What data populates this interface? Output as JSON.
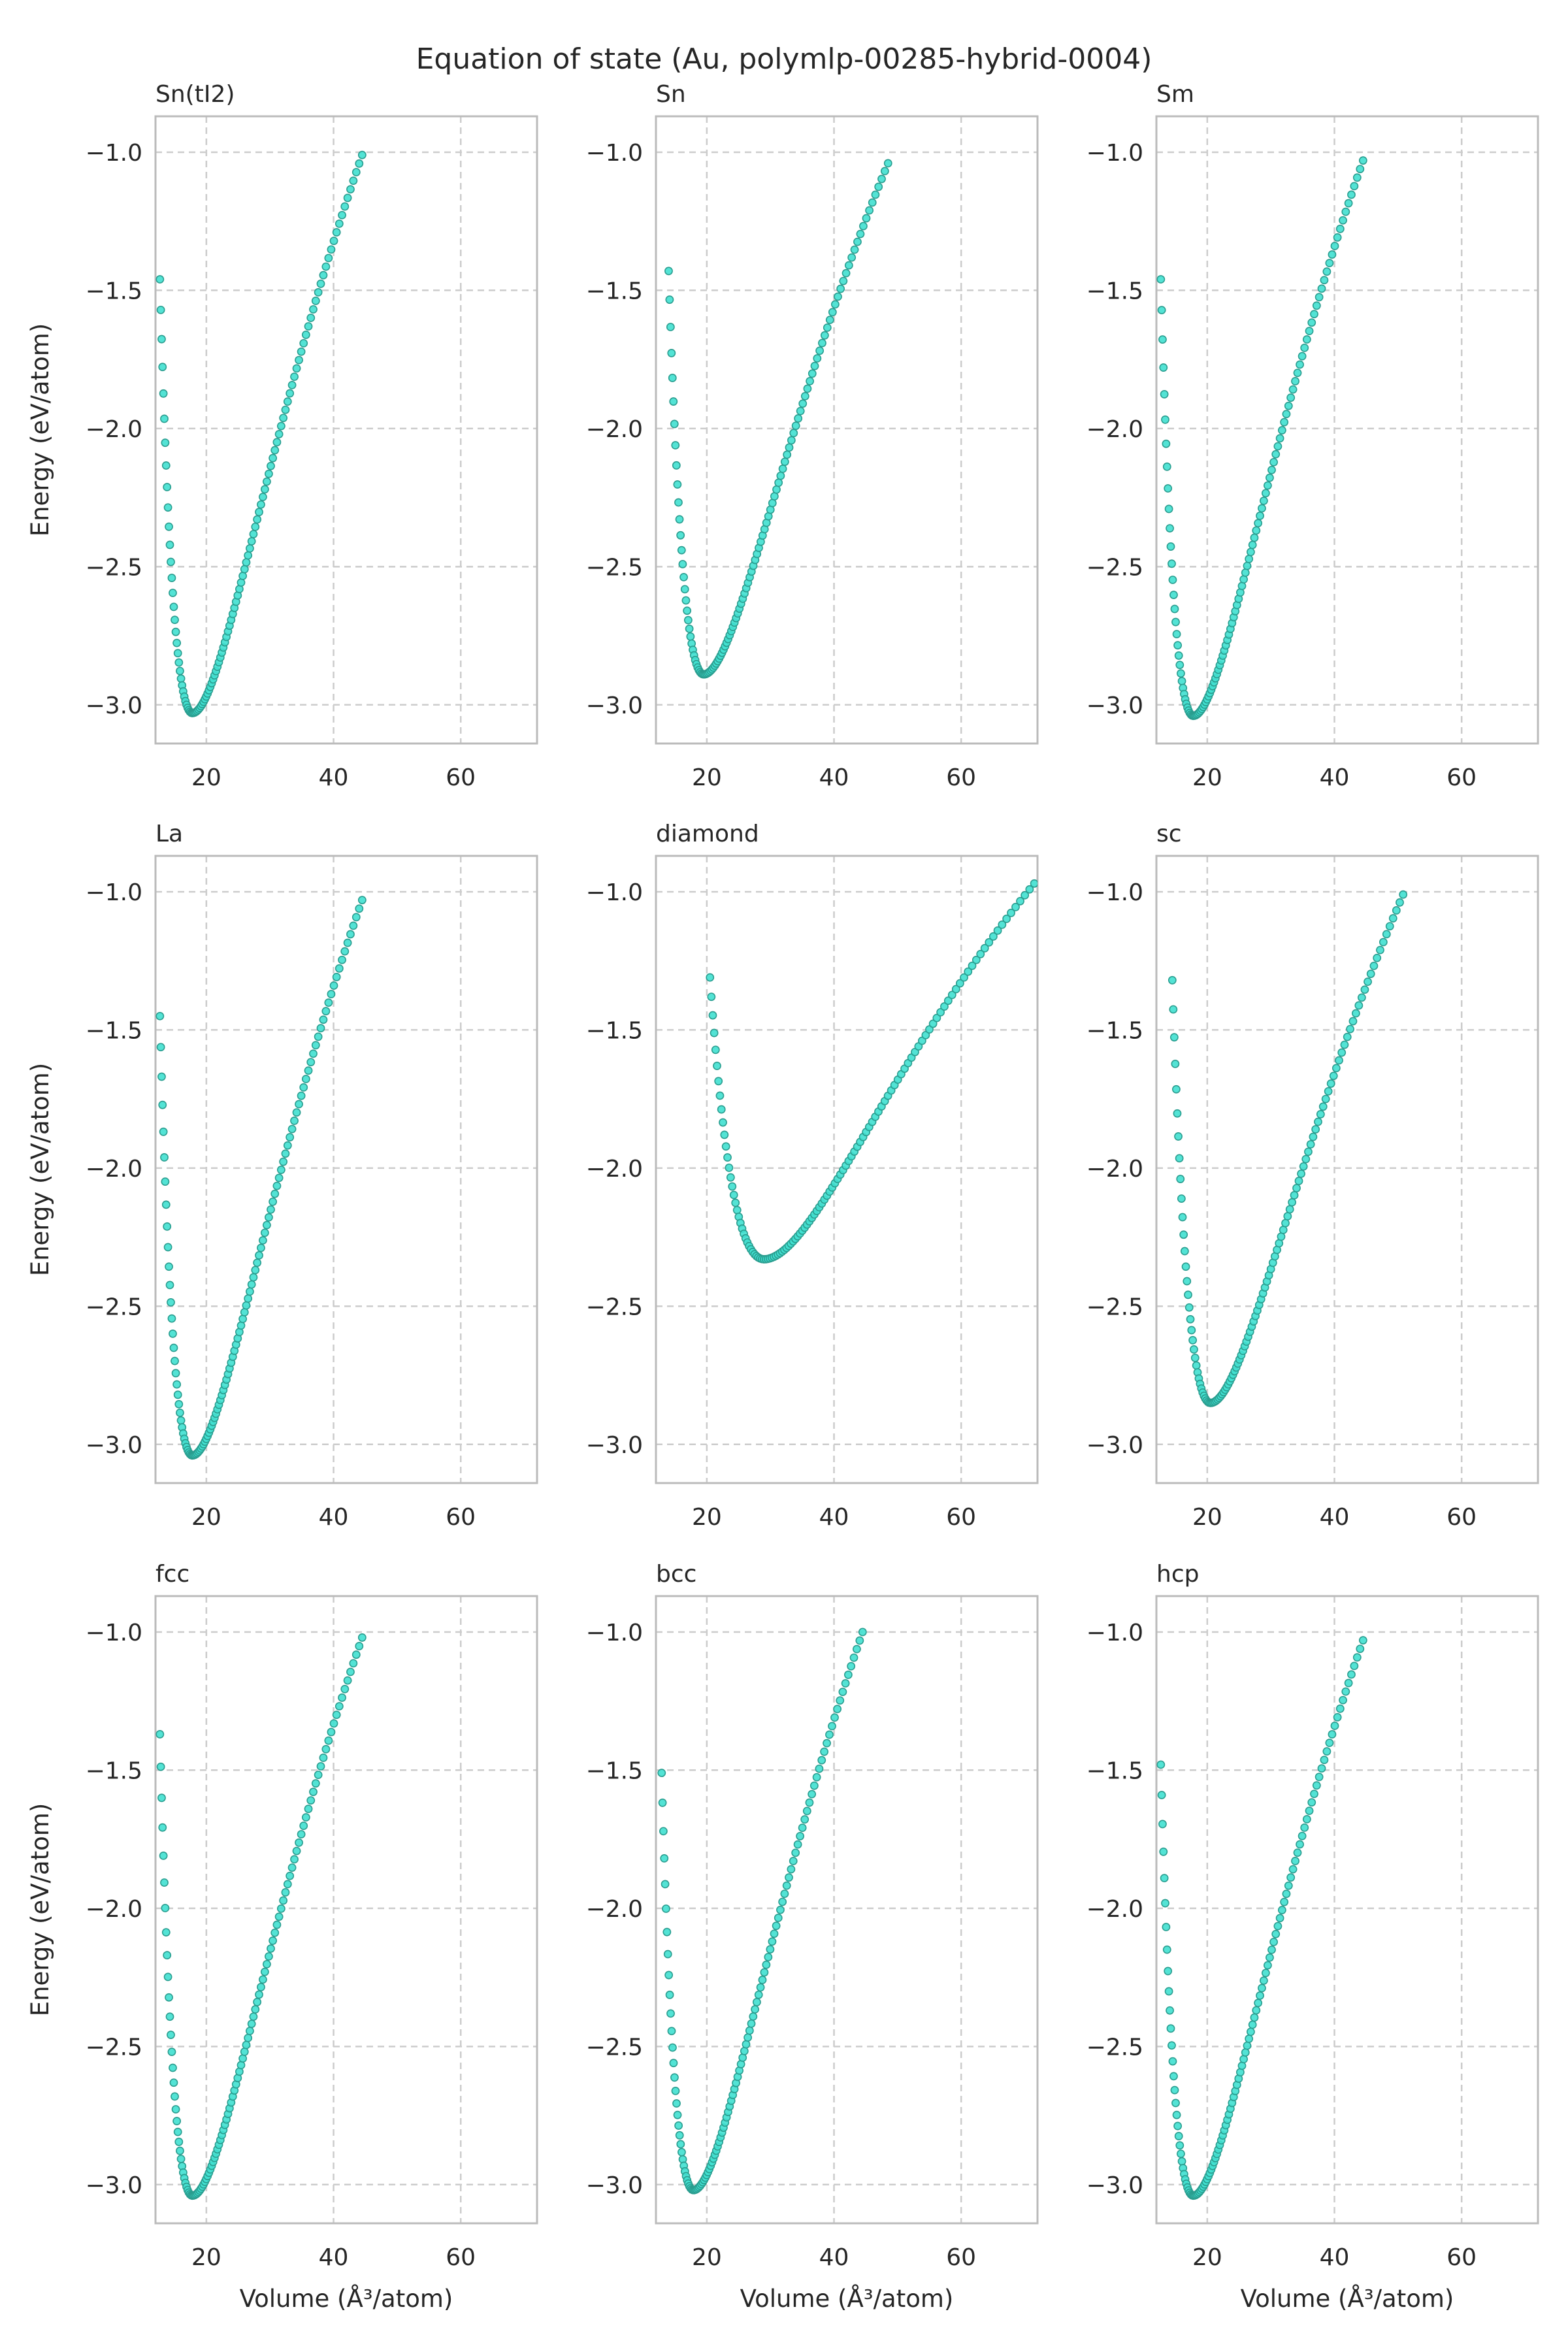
{
  "figure": {
    "title": "Equation of state (Au, polymlp-00285-hybrid-0004)",
    "point_color": "#40e0d0",
    "point_edge_color": "#2a9d8f",
    "grid_color": "#cccccc",
    "axis_color": "#bbbbbb",
    "text_color": "#262626"
  },
  "chart_data": [
    {
      "type": "scatter",
      "title": "Sn(tI2)",
      "xlabel": "",
      "ylabel": "Energy (eV/atom)",
      "xlim": [
        12,
        72
      ],
      "ylim": [
        -3.14,
        -0.87
      ],
      "xticks": [
        20,
        40,
        60
      ],
      "yticks": [
        -1.0,
        -1.5,
        -2.0,
        -2.5,
        -3.0
      ],
      "grid": true,
      "x0": 17.8,
      "emin": -3.03,
      "vmin": 12.7,
      "vmax": 44.5,
      "estart": -1.46,
      "eend": -1.01,
      "n": 120
    },
    {
      "type": "scatter",
      "title": "Sn",
      "xlabel": "",
      "ylabel": "",
      "xlim": [
        12,
        72
      ],
      "ylim": [
        -3.14,
        -0.87
      ],
      "xticks": [
        20,
        40,
        60
      ],
      "yticks": [
        -1.0,
        -1.5,
        -2.0,
        -2.5,
        -3.0
      ],
      "grid": true,
      "x0": 19.5,
      "emin": -2.89,
      "vmin": 14.0,
      "vmax": 48.5,
      "estart": -1.43,
      "eend": -1.04,
      "n": 120
    },
    {
      "type": "scatter",
      "title": "Sm",
      "xlabel": "",
      "ylabel": "",
      "xlim": [
        12,
        72
      ],
      "ylim": [
        -3.14,
        -0.87
      ],
      "xticks": [
        20,
        40,
        60
      ],
      "yticks": [
        -1.0,
        -1.5,
        -2.0,
        -2.5,
        -3.0
      ],
      "grid": true,
      "x0": 17.8,
      "emin": -3.04,
      "vmin": 12.7,
      "vmax": 44.5,
      "estart": -1.46,
      "eend": -1.03,
      "n": 120
    },
    {
      "type": "scatter",
      "title": "La",
      "xlabel": "",
      "ylabel": "Energy (eV/atom)",
      "xlim": [
        12,
        72
      ],
      "ylim": [
        -3.14,
        -0.87
      ],
      "xticks": [
        20,
        40,
        60
      ],
      "yticks": [
        -1.0,
        -1.5,
        -2.0,
        -2.5,
        -3.0
      ],
      "grid": true,
      "x0": 17.8,
      "emin": -3.04,
      "vmin": 12.7,
      "vmax": 44.5,
      "estart": -1.45,
      "eend": -1.03,
      "n": 120
    },
    {
      "type": "scatter",
      "title": "diamond",
      "xlabel": "",
      "ylabel": "",
      "xlim": [
        12,
        72
      ],
      "ylim": [
        -3.14,
        -0.87
      ],
      "xticks": [
        20,
        40,
        60
      ],
      "yticks": [
        -1.0,
        -1.5,
        -2.0,
        -2.5,
        -3.0
      ],
      "grid": true,
      "x0": 29.0,
      "emin": -2.33,
      "vmin": 20.5,
      "vmax": 71.5,
      "estart": -1.31,
      "eend": -0.97,
      "n": 120
    },
    {
      "type": "scatter",
      "title": "sc",
      "xlabel": "",
      "ylabel": "",
      "xlim": [
        12,
        72
      ],
      "ylim": [
        -3.14,
        -0.87
      ],
      "xticks": [
        20,
        40,
        60
      ],
      "yticks": [
        -1.0,
        -1.5,
        -2.0,
        -2.5,
        -3.0
      ],
      "grid": true,
      "x0": 20.5,
      "emin": -2.85,
      "vmin": 14.5,
      "vmax": 50.8,
      "estart": -1.32,
      "eend": -1.01,
      "n": 120
    },
    {
      "type": "scatter",
      "title": "fcc",
      "xlabel": "Volume (Å³/atom)",
      "ylabel": "Energy (eV/atom)",
      "xlim": [
        12,
        72
      ],
      "ylim": [
        -3.14,
        -0.87
      ],
      "xticks": [
        20,
        40,
        60
      ],
      "yticks": [
        -1.0,
        -1.5,
        -2.0,
        -2.5,
        -3.0
      ],
      "grid": true,
      "x0": 17.8,
      "emin": -3.04,
      "vmin": 12.7,
      "vmax": 44.5,
      "estart": -1.37,
      "eend": -1.02,
      "n": 120
    },
    {
      "type": "scatter",
      "title": "bcc",
      "xlabel": "Volume (Å³/atom)",
      "ylabel": "",
      "xlim": [
        12,
        72
      ],
      "ylim": [
        -3.14,
        -0.87
      ],
      "xticks": [
        20,
        40,
        60
      ],
      "yticks": [
        -1.0,
        -1.5,
        -2.0,
        -2.5,
        -3.0
      ],
      "grid": true,
      "x0": 17.9,
      "emin": -3.02,
      "vmin": 12.9,
      "vmax": 44.5,
      "estart": -1.51,
      "eend": -1.0,
      "n": 120
    },
    {
      "type": "scatter",
      "title": "hcp",
      "xlabel": "Volume (Å³/atom)",
      "ylabel": "",
      "xlim": [
        12,
        72
      ],
      "ylim": [
        -3.14,
        -0.87
      ],
      "xticks": [
        20,
        40,
        60
      ],
      "yticks": [
        -1.0,
        -1.5,
        -2.0,
        -2.5,
        -3.0
      ],
      "grid": true,
      "x0": 17.8,
      "emin": -3.04,
      "vmin": 12.7,
      "vmax": 44.5,
      "estart": -1.48,
      "eend": -1.03,
      "n": 120
    }
  ]
}
